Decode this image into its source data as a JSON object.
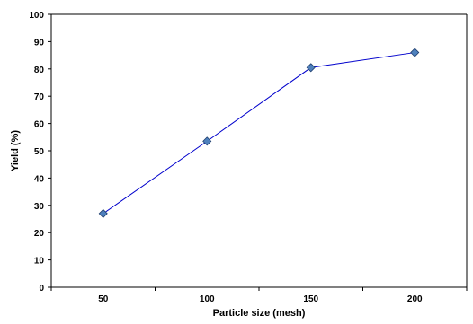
{
  "chart_data": {
    "type": "line",
    "title": "",
    "xlabel": "Particle size (mesh)",
    "ylabel": "Yield (%)",
    "categories": [
      "50",
      "100",
      "150",
      "200"
    ],
    "series": [
      {
        "values": [
          27,
          53.5,
          80.5,
          86
        ],
        "color": "#0000cc",
        "marker": "diamond",
        "marker_color": "#4f81bd"
      }
    ],
    "ylim": [
      0,
      100
    ],
    "yticks": [
      0,
      10,
      20,
      30,
      40,
      50,
      60,
      70,
      80,
      90,
      100
    ],
    "grid": false,
    "legend": "none"
  }
}
